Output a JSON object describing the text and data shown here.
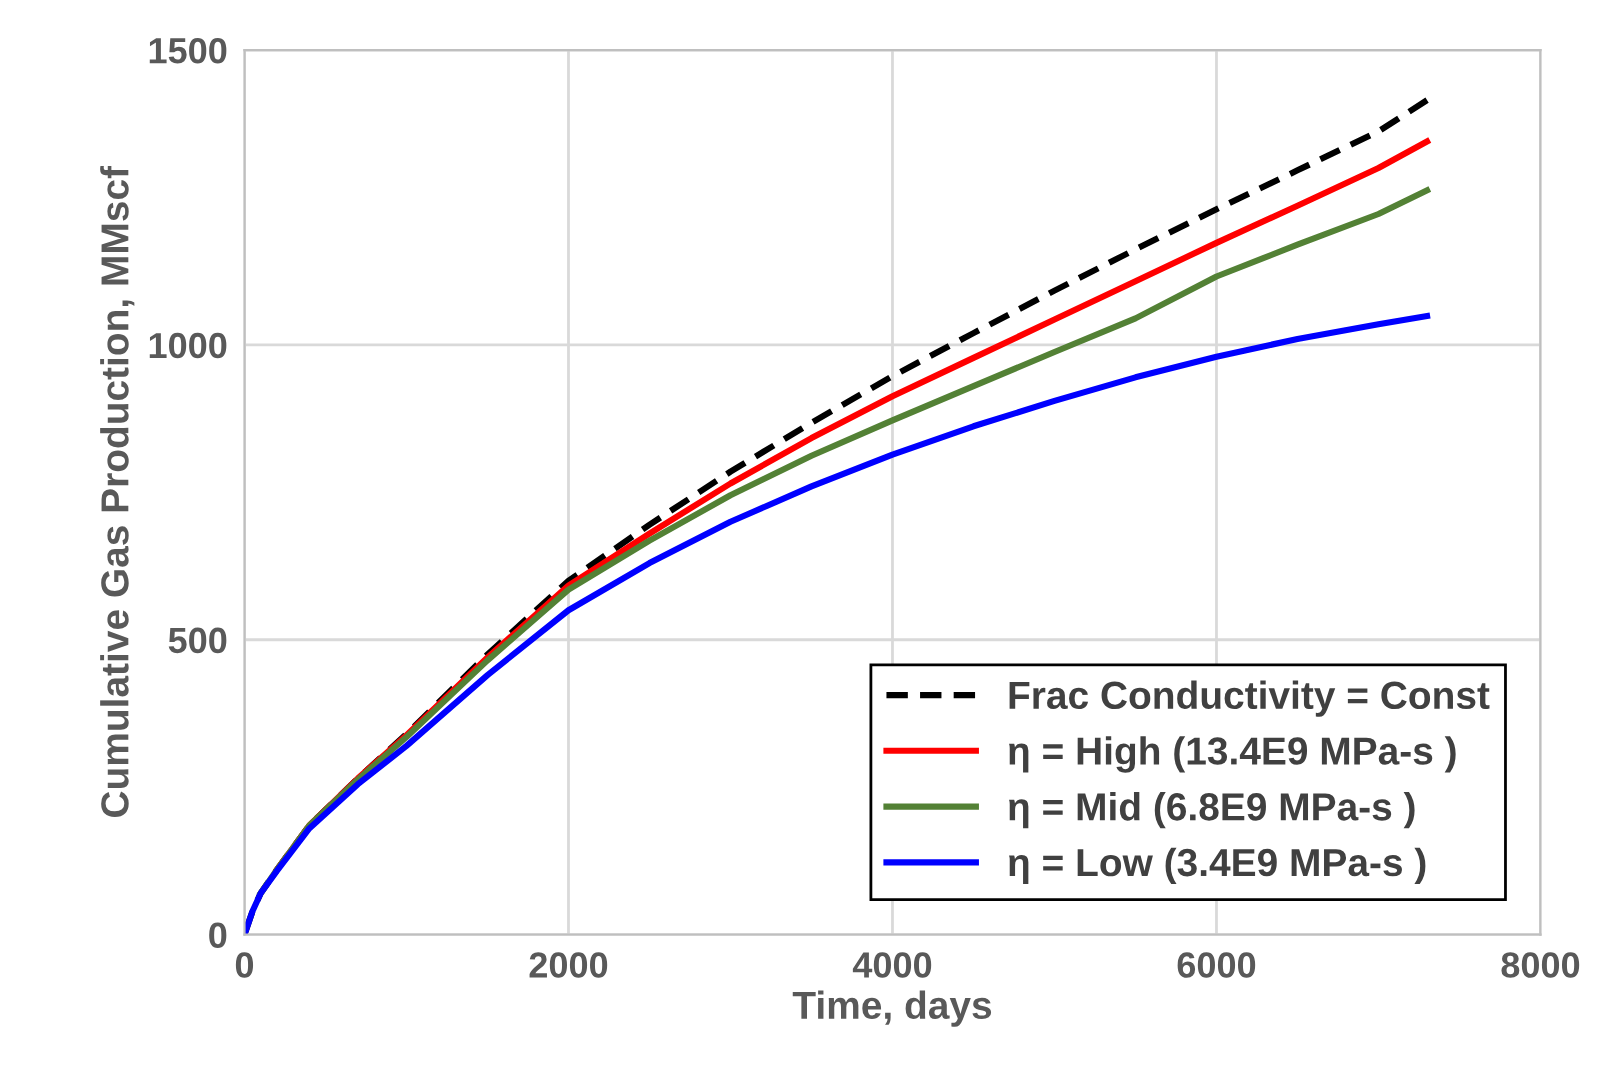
{
  "chart_data": {
    "type": "line",
    "xlabel": "Time, days",
    "ylabel": "Cumulative Gas Production, MMscf",
    "xlim": [
      0,
      8000
    ],
    "xticks": [
      0,
      2000,
      4000,
      6000,
      8000
    ],
    "ylim": [
      0,
      1500
    ],
    "yticks": [
      0,
      500,
      1000,
      1500
    ],
    "grid": true,
    "legend": "bottom right",
    "marker": "none",
    "x": [
      0,
      50,
      100,
      200,
      400,
      700,
      1000,
      1500,
      2000,
      2500,
      3000,
      3500,
      4000,
      4500,
      5000,
      5500,
      6000,
      6500,
      7000,
      7300
    ],
    "series": [
      {
        "name": "Frac Conductivity = Const",
        "color": "#000000",
        "line_style": "dashed",
        "values": [
          0,
          40,
          70,
          110,
          185,
          265,
          340,
          475,
          600,
          695,
          785,
          868,
          947,
          1020,
          1092,
          1162,
          1230,
          1296,
          1362,
          1415
        ]
      },
      {
        "name": "η = High (13.4E9 MPa-s )",
        "color": "#ff0000",
        "line_style": "solid",
        "values": [
          null,
          null,
          null,
          110,
          185,
          265,
          338,
          470,
          592,
          680,
          765,
          842,
          913,
          978,
          1043,
          1108,
          1173,
          1236,
          1300,
          1345
        ]
      },
      {
        "name": "η = Mid (6.8E9 MPa-s )",
        "color": "#538135",
        "line_style": "solid",
        "values": [
          null,
          null,
          70,
          110,
          185,
          263,
          335,
          465,
          585,
          668,
          745,
          812,
          872,
          930,
          988,
          1045,
          1116,
          1170,
          1222,
          1262
        ]
      },
      {
        "name": "η = Low (3.4E9 MPa-s )",
        "color": "#0000ff",
        "line_style": "solid",
        "values": [
          0,
          40,
          70,
          108,
          180,
          255,
          320,
          440,
          550,
          630,
          700,
          760,
          814,
          862,
          905,
          945,
          980,
          1010,
          1035,
          1049
        ]
      }
    ]
  }
}
